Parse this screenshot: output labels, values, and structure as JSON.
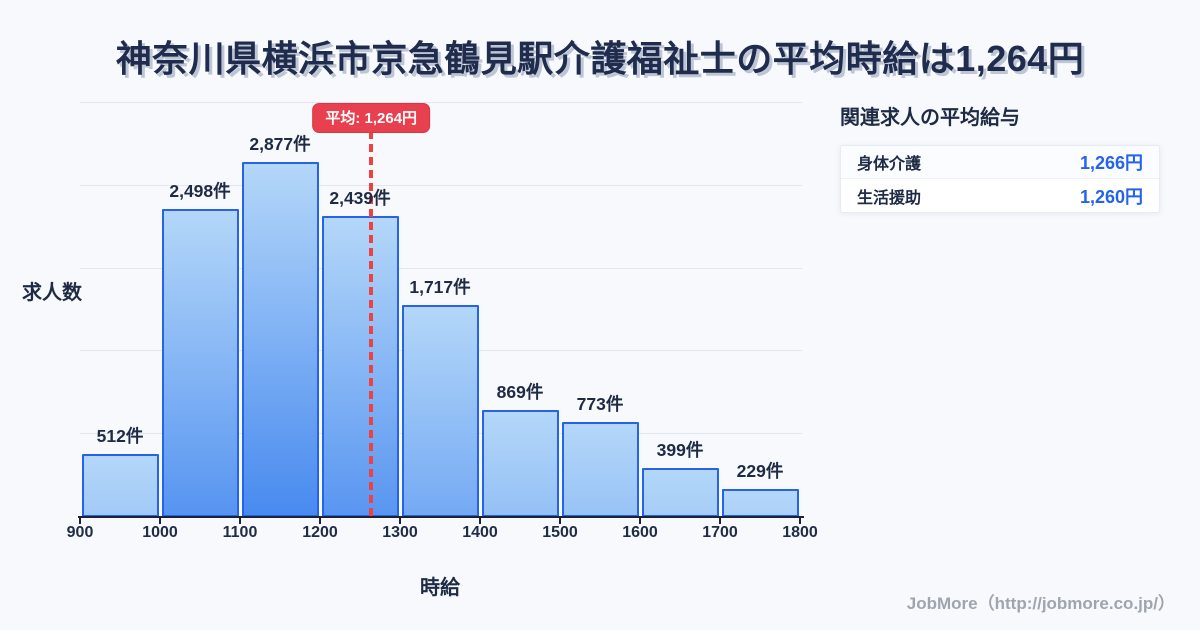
{
  "title": "神奈川県横浜市京急鶴見駅介護福祉士の平均時給は1,264円",
  "chart_data": {
    "type": "bar",
    "subtype": "histogram",
    "x_bin_edges": [
      900,
      1000,
      1100,
      1200,
      1300,
      1400,
      1500,
      1600,
      1700,
      1800
    ],
    "x_tick_labels": [
      "900",
      "1000",
      "1100",
      "1200",
      "1300",
      "1400",
      "1500",
      "1600",
      "1700",
      "1800"
    ],
    "values": [
      512,
      2498,
      2877,
      2439,
      1717,
      869,
      773,
      399,
      229
    ],
    "bar_labels": [
      "512件",
      "2,498件",
      "2,877件",
      "2,439件",
      "1,717件",
      "869件",
      "773件",
      "399件",
      "229件"
    ],
    "xlabel": "時給",
    "ylabel": "求人数",
    "ylim": [
      0,
      3360
    ],
    "grid": true,
    "gridline_count": 5,
    "average": {
      "value": 1264,
      "label": "平均: 1,264円"
    }
  },
  "side_panel": {
    "heading": "関連求人の平均給与",
    "rows": [
      {
        "label": "身体介護",
        "value": "1,266円"
      },
      {
        "label": "生活援助",
        "value": "1,260円"
      }
    ]
  },
  "footer": {
    "credit": "JobMore（http://jobmore.co.jp/）"
  },
  "colors": {
    "background": "#f7f9fc",
    "title_text": "#202c4d",
    "bar_gradient_top": "#b4d7f9",
    "bar_gradient_bottom": "#4789ef",
    "bar_border": "#2563eb",
    "average_red": "#e8404e",
    "value_blue": "#2563eb",
    "axis_dark": "#1b2434",
    "gridline": "#e2e6f0",
    "footer_gray": "#9fa5af"
  }
}
